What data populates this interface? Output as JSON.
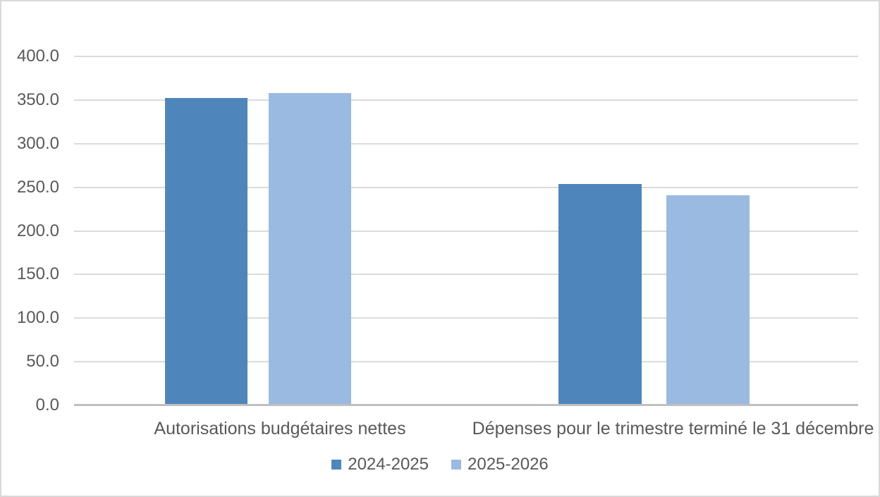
{
  "chart_data": {
    "type": "bar",
    "title": "",
    "xlabel": "",
    "ylabel": "",
    "categories": [
      "Autorisations budgétaires nettes",
      "Dépenses pour le trimestre terminé le 31 décembre"
    ],
    "series": [
      {
        "name": "2024-2025",
        "color": "#4E86BC",
        "values": [
          352,
          254
        ]
      },
      {
        "name": "2025-2026",
        "color": "#9ABAE1",
        "values": [
          358,
          241
        ]
      }
    ],
    "ylim": [
      0,
      400
    ],
    "ytick_step": 50,
    "y_ticks": [
      "0.0",
      "50.0",
      "100.0",
      "150.0",
      "200.0",
      "250.0",
      "300.0",
      "350.0",
      "400.0"
    ],
    "grid": true,
    "legend_position": "bottom",
    "colors": {
      "gridline": "#DBDBDB",
      "axis_line": "#BFBFBF",
      "text": "#595959",
      "chart_border": "#D9D9D9",
      "background": "#FFFFFF"
    }
  }
}
